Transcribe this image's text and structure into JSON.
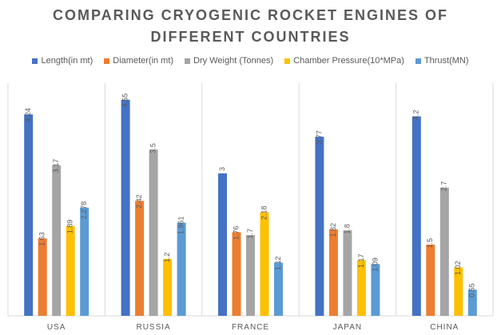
{
  "chart_data": {
    "type": "bar",
    "title": "COMPARING CRYOGENIC ROCKET ENGINES OF DIFFERENT COUNTRIES",
    "categories": [
      "USA",
      "RUSSIA",
      "FRANCE",
      "JAPAN",
      "CHINA"
    ],
    "series": [
      {
        "name": "Length(in mt)",
        "color": "#4472c4",
        "values": [
          4.24,
          4.55,
          3,
          3.77,
          4.2
        ],
        "labels": [
          "4.24",
          "4.55",
          "3",
          "3.77",
          "4.2"
        ]
      },
      {
        "name": "Diameter(in mt)",
        "color": "#ed7d31",
        "values": [
          1.63,
          2.42,
          1.76,
          1.82,
          1.5
        ],
        "labels": [
          "1.63",
          "2.42",
          "1.76",
          "1.82",
          "1.5"
        ]
      },
      {
        "name": "Dry Weight (Tonnes)",
        "color": "#a5a5a5",
        "values": [
          3.17,
          3.5,
          1.7,
          1.8,
          2.7
        ],
        "labels": [
          "3.17",
          "3.5",
          "1.7",
          "1.8",
          "2.7"
        ]
      },
      {
        "name": "Chamber Pressure(10*MPa)",
        "color": "#ffc000",
        "values": [
          1.89,
          1.2,
          2.18,
          1.17,
          1.02
        ],
        "labels": [
          "1.89",
          "1.2",
          "2.18",
          "1.17",
          "1.02"
        ]
      },
      {
        "name": "Thrust(MN)",
        "color": "#5b9bd5",
        "values": [
          2.278,
          1.961,
          1.12,
          1.09,
          0.55
        ],
        "labels": [
          "2.278",
          "1.961",
          "1.12",
          "1.09",
          "0.55"
        ]
      }
    ],
    "ylim": [
      0,
      5
    ],
    "xlabel": "",
    "ylabel": "",
    "grid": false,
    "legend_position": "top"
  }
}
